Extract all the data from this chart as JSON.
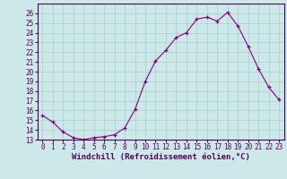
{
  "x": [
    0,
    1,
    2,
    3,
    4,
    5,
    6,
    7,
    8,
    9,
    10,
    11,
    12,
    13,
    14,
    15,
    16,
    17,
    18,
    19,
    20,
    21,
    22,
    23
  ],
  "y": [
    15.5,
    14.8,
    13.8,
    13.2,
    13.0,
    13.2,
    13.3,
    13.5,
    14.2,
    16.1,
    19.0,
    21.1,
    22.2,
    23.5,
    24.0,
    25.4,
    25.6,
    25.2,
    26.1,
    24.7,
    22.6,
    20.3,
    18.4,
    17.1
  ],
  "xlabel": "Windchill (Refroidissement éolien,°C)",
  "ylim": [
    13,
    27
  ],
  "xlim": [
    -0.5,
    23.5
  ],
  "yticks": [
    13,
    14,
    15,
    16,
    17,
    18,
    19,
    20,
    21,
    22,
    23,
    24,
    25,
    26
  ],
  "xticks": [
    0,
    1,
    2,
    3,
    4,
    5,
    6,
    7,
    8,
    9,
    10,
    11,
    12,
    13,
    14,
    15,
    16,
    17,
    18,
    19,
    20,
    21,
    22,
    23
  ],
  "line_color": "#800080",
  "marker": "+",
  "bg_color": "#cce8e8",
  "grid_color": "#aacccc",
  "tick_label_fontsize": 5.5,
  "xlabel_fontsize": 6.5
}
